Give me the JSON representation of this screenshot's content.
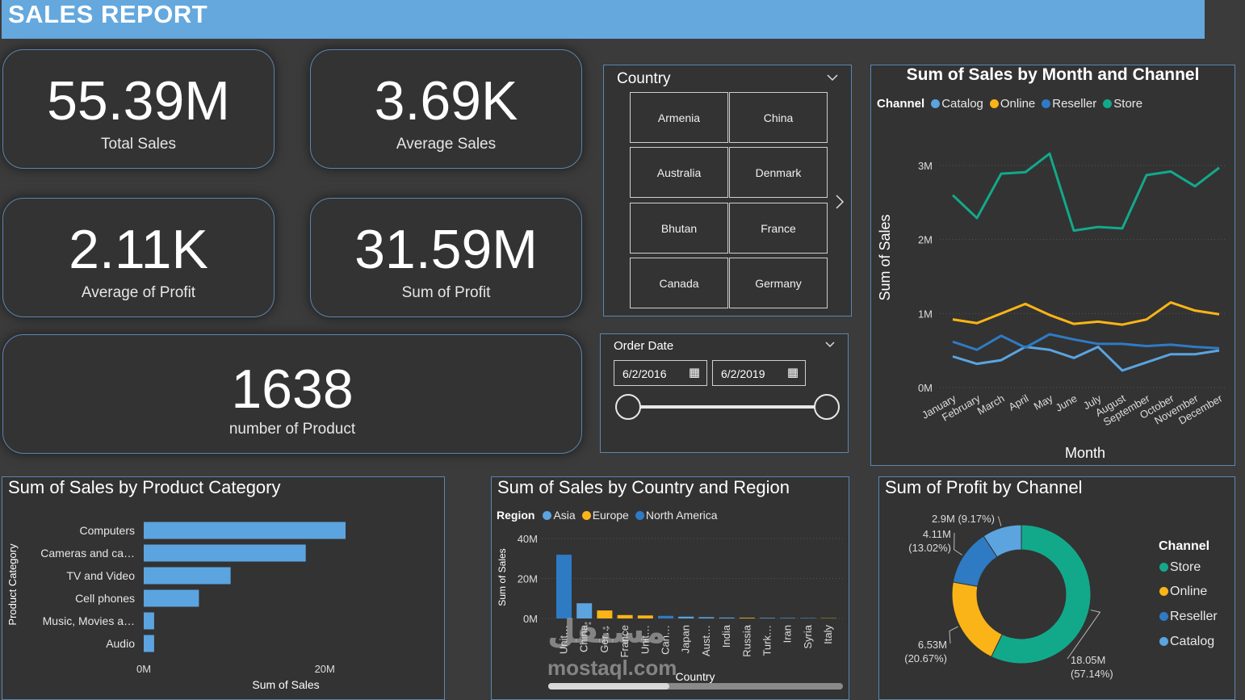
{
  "header": {
    "title": "SALES REPORT"
  },
  "kpis": {
    "total_sales": {
      "value": "55.39M",
      "label": "Total Sales"
    },
    "average_sales": {
      "value": "3.69K",
      "label": "Average Sales"
    },
    "average_profit": {
      "value": "2.11K",
      "label": "Average of Profit"
    },
    "sum_profit": {
      "value": "31.59M",
      "label": "Sum of Profit"
    },
    "num_products": {
      "value": "1638",
      "label": "number of Product"
    }
  },
  "country_slicer": {
    "title": "Country",
    "items": [
      "Armenia",
      "China",
      "Australia",
      "Denmark",
      "Bhutan",
      "France",
      "Canada",
      "Germany"
    ]
  },
  "date_slicer": {
    "title": "Order Date",
    "start": "6/2/2016",
    "end": "6/2/2019"
  },
  "colors": {
    "catalog": "#5ba4e0",
    "online": "#fbb417",
    "reseller": "#2e7bc4",
    "store": "#12a98b",
    "asia": "#5ba4e0",
    "europe": "#fbb417",
    "north_america": "#2e7bc4",
    "bar": "#5ba4e0"
  },
  "chart_data": [
    {
      "id": "monthly",
      "type": "line",
      "title": "Sum of Sales by Month and Channel",
      "legend_title": "Channel",
      "xlabel": "Month",
      "ylabel": "Sum of Sales",
      "x": [
        "January",
        "February",
        "March",
        "April",
        "May",
        "June",
        "July",
        "August",
        "September",
        "October",
        "November",
        "December"
      ],
      "yticks": [
        "0M",
        "1M",
        "2M",
        "3M"
      ],
      "ylim": [
        0,
        3000000
      ],
      "series": [
        {
          "name": "Catalog",
          "color_key": "catalog",
          "values": [
            420000,
            320000,
            370000,
            550000,
            510000,
            400000,
            550000,
            230000,
            340000,
            450000,
            450000,
            500000
          ]
        },
        {
          "name": "Online",
          "color_key": "online",
          "values": [
            920000,
            870000,
            1000000,
            1130000,
            980000,
            860000,
            890000,
            850000,
            920000,
            1150000,
            1040000,
            990000
          ]
        },
        {
          "name": "Reseller",
          "color_key": "reseller",
          "values": [
            620000,
            510000,
            700000,
            540000,
            720000,
            650000,
            590000,
            590000,
            560000,
            580000,
            550000,
            530000
          ]
        },
        {
          "name": "Store",
          "color_key": "store",
          "values": [
            2600000,
            2290000,
            2890000,
            2910000,
            3160000,
            2120000,
            2170000,
            2150000,
            2870000,
            2920000,
            2720000,
            2970000
          ]
        }
      ]
    },
    {
      "id": "category",
      "type": "bar",
      "orientation": "horizontal",
      "title": "Sum of Sales by Product Category",
      "xlabel": "Sum of Sales",
      "ylabel": "Product Category",
      "categories": [
        "Computers",
        "Cameras and ca…",
        "TV and Video",
        "Cell phones",
        "Music, Movies a…",
        "Audio"
      ],
      "values": [
        22300000,
        17900000,
        9600000,
        6100000,
        1150000,
        1150000
      ],
      "xticks": [
        "0M",
        "20M"
      ],
      "xlim": [
        0,
        22300000
      ]
    },
    {
      "id": "country",
      "type": "bar",
      "title": "Sum of Sales by Country and Region",
      "legend_title": "Region",
      "xlabel": "Country",
      "ylabel": "Sum of Sales",
      "categories": [
        "Unit…",
        "China",
        "Ger…",
        "France",
        "Unit…",
        "Can…",
        "Japan",
        "Aust…",
        "India",
        "Russia",
        "Turk…",
        "Iran",
        "Syria",
        "Italy"
      ],
      "values": [
        31900000,
        7600000,
        4000000,
        1700000,
        1500000,
        1300000,
        900000,
        650000,
        450000,
        350000,
        300000,
        250000,
        200000,
        150000
      ],
      "region_keys": [
        "north_america",
        "asia",
        "europe",
        "europe",
        "europe",
        "north_america",
        "asia",
        "asia",
        "asia",
        "europe",
        "asia",
        "asia",
        "asia",
        "europe"
      ],
      "series": [
        {
          "name": "Asia"
        },
        {
          "name": "Europe"
        },
        {
          "name": "North America"
        }
      ],
      "yticks": [
        "0M",
        "20M",
        "40M"
      ],
      "ylim": [
        0,
        40000000
      ]
    },
    {
      "id": "profit",
      "type": "pie",
      "title": "Sum of Profit by Channel",
      "legend_title": "Channel",
      "slices": [
        {
          "name": "Store",
          "color_key": "store",
          "value": 18050000,
          "label": "18.05M",
          "pct": "(57.14%)"
        },
        {
          "name": "Online",
          "color_key": "online",
          "value": 6530000,
          "label": "6.53M",
          "pct": "(20.67%)"
        },
        {
          "name": "Reseller",
          "color_key": "reseller",
          "value": 4110000,
          "label": "4.11M",
          "pct": "(13.02%)"
        },
        {
          "name": "Catalog",
          "color_key": "catalog",
          "value": 2900000,
          "label": "2.9M",
          "pct": "(9.17%)"
        }
      ]
    }
  ],
  "watermark": {
    "arabic": "مستقل",
    "latin": "mostaql.com"
  }
}
